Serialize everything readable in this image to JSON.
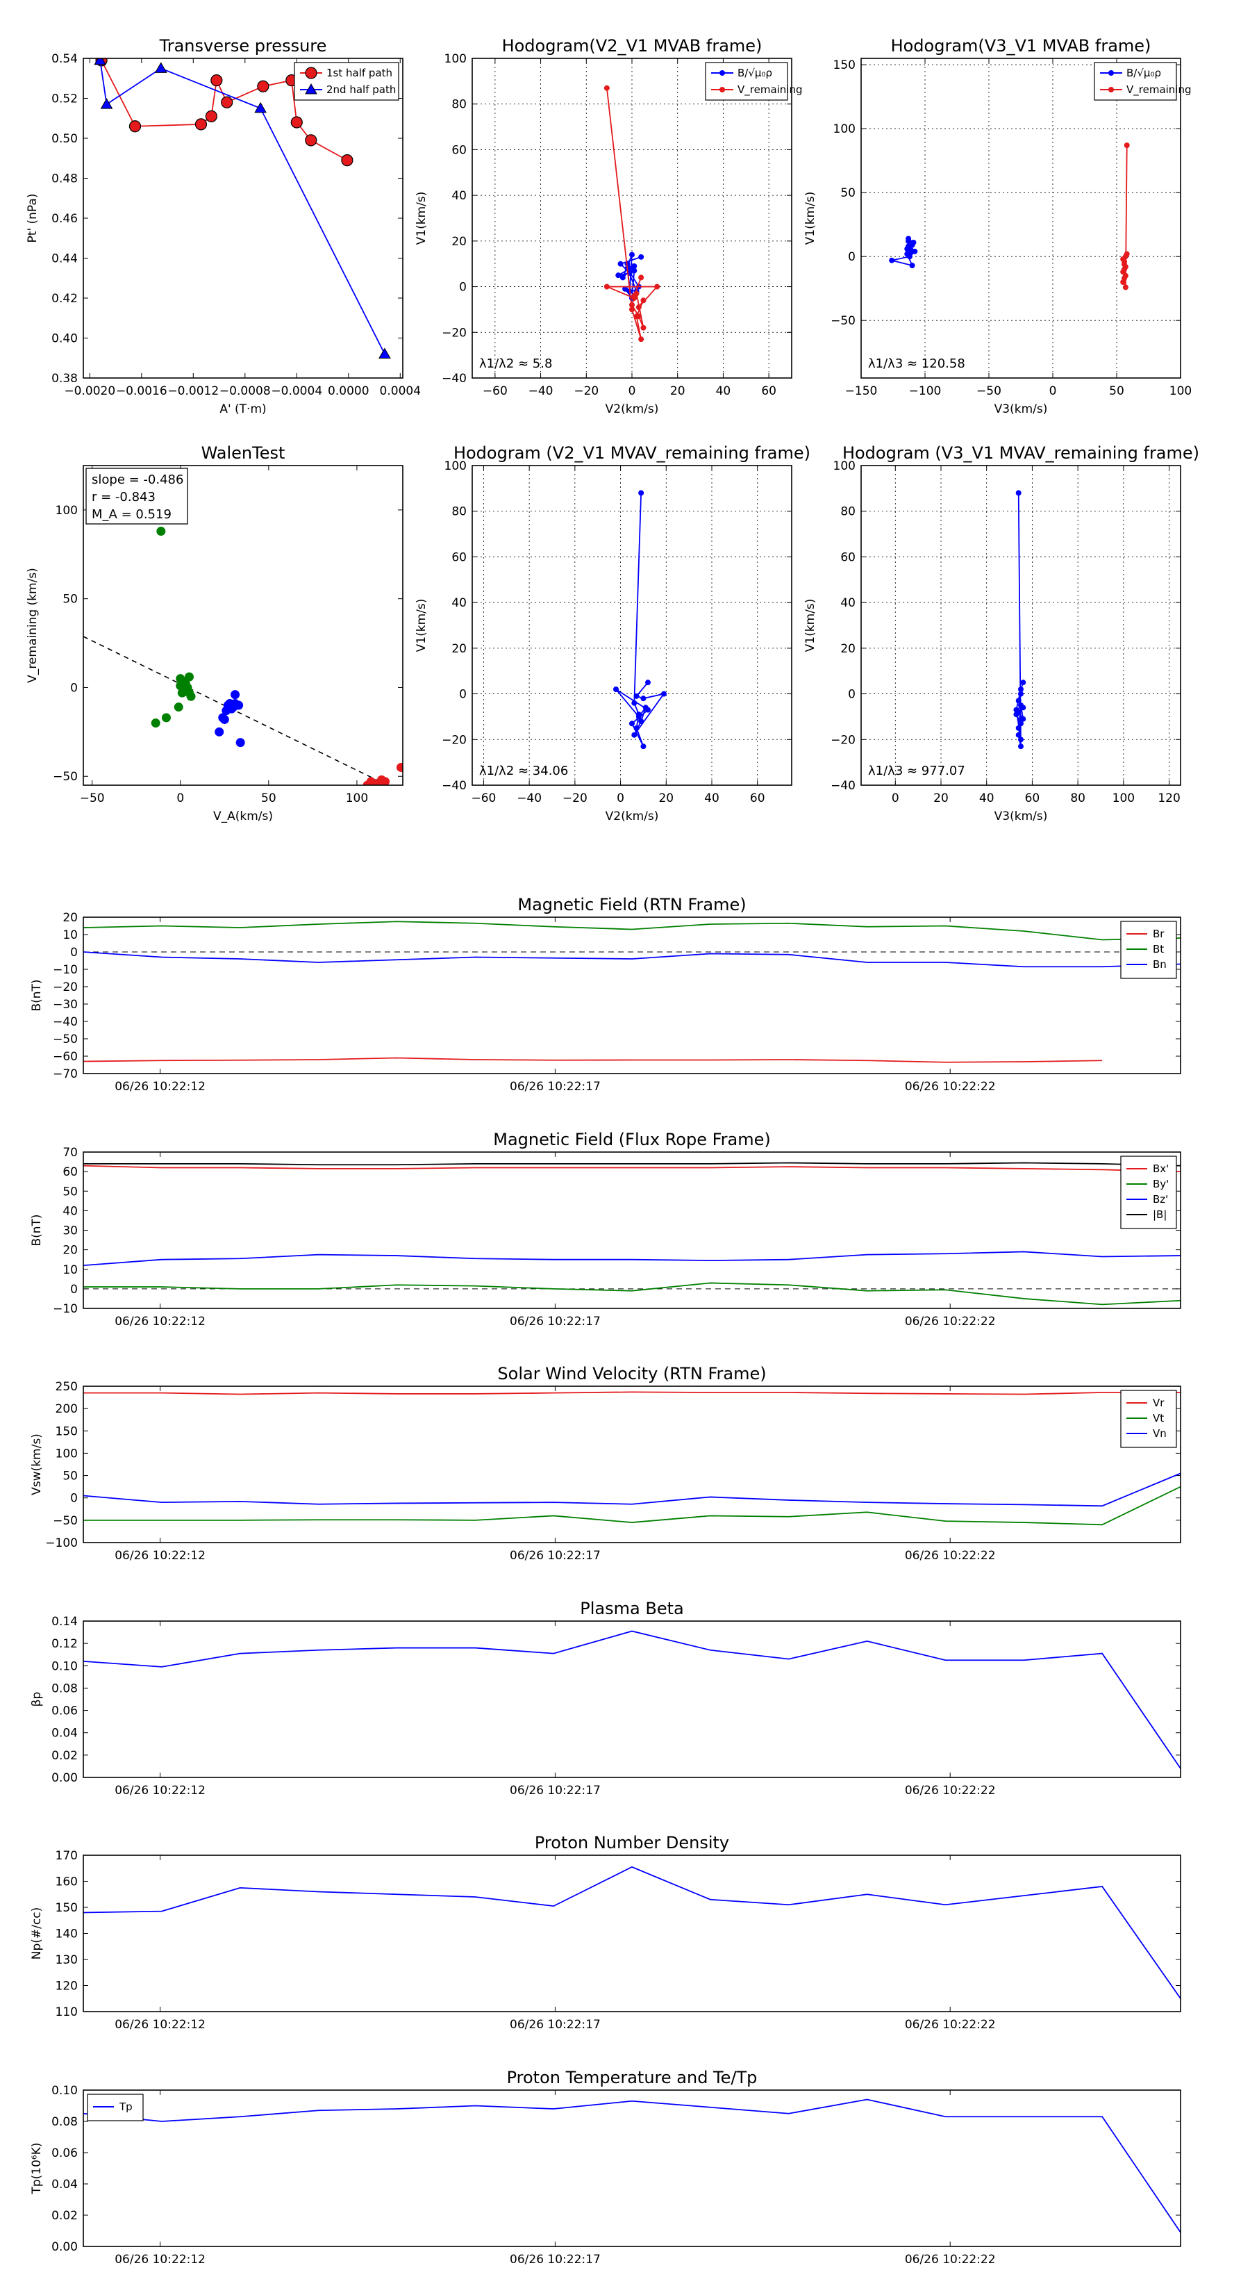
{
  "colors": {
    "red": "#e41a1c",
    "blue": "#0000ff",
    "green": "#008000",
    "black": "#000000"
  },
  "chart_data": [
    {
      "id": "tp",
      "type": "line",
      "title": "Transverse pressure",
      "xlabel": "A' (T·m)",
      "ylabel": "Pt' (nPa)",
      "xlim": [
        -0.00205,
        0.00042
      ],
      "ylim": [
        0.38,
        0.54
      ],
      "xticks": [
        -0.002,
        -0.0016,
        -0.0012,
        -0.0008,
        -0.0004,
        0.0,
        0.0004
      ],
      "xticklabels": [
        "−0.0020",
        "−0.0016",
        "−0.0012",
        "−0.0008",
        "−0.0004",
        "0.0000",
        "0.0004"
      ],
      "yticks": [
        0.38,
        0.4,
        0.42,
        0.44,
        0.46,
        0.48,
        0.5,
        0.52,
        0.54
      ],
      "yticklabels": [
        "0.38",
        "0.40",
        "0.42",
        "0.44",
        "0.46",
        "0.48",
        "0.50",
        "0.52",
        "0.54"
      ],
      "grid": false,
      "legend": "top-right",
      "series": [
        {
          "name": "1st half path",
          "color": "red",
          "marker": "circle",
          "x": [
            -0.00191,
            -0.00165,
            -0.00114,
            -0.00106,
            -0.00102,
            -0.00094,
            -0.00066,
            -0.00044,
            -0.0004,
            -0.00029,
            -1e-05
          ],
          "y": [
            0.539,
            0.506,
            0.507,
            0.511,
            0.529,
            0.518,
            0.526,
            0.529,
            0.508,
            0.499,
            0.489
          ]
        },
        {
          "name": "2nd half path",
          "color": "blue",
          "marker": "triangle",
          "x": [
            -0.00192,
            -0.00187,
            -0.00145,
            -0.00068,
            0.00028
          ],
          "y": [
            0.539,
            0.517,
            0.535,
            0.515,
            0.392
          ]
        }
      ]
    },
    {
      "id": "h1",
      "type": "line",
      "title": "Hodogram(V2_V1 MVAB frame)",
      "xlabel": "V2(km/s)",
      "ylabel": "V1(km/s)",
      "xlim": [
        -70,
        70
      ],
      "ylim": [
        -40,
        100
      ],
      "xticks": [
        -60,
        -40,
        -20,
        0,
        20,
        40,
        60
      ],
      "xticklabels": [
        "−60",
        "−40",
        "−20",
        "0",
        "20",
        "40",
        "60"
      ],
      "yticks": [
        -40,
        -20,
        0,
        20,
        40,
        60,
        80,
        100
      ],
      "yticklabels": [
        "−40",
        "−20",
        "0",
        "20",
        "40",
        "60",
        "80",
        "100"
      ],
      "grid": true,
      "legend": "top-right",
      "annotation": "λ1/λ2 ≈ 5.8",
      "series": [
        {
          "name": "B/√μ₀ρ",
          "color": "blue",
          "marker": "dot",
          "x": [
            4,
            -5,
            -1,
            -6,
            1,
            -4,
            0,
            -1,
            -2,
            1,
            0,
            -3,
            2,
            -2,
            3
          ],
          "y": [
            13,
            10,
            6,
            5,
            9,
            4,
            14,
            -2,
            10,
            7,
            -5,
            -1,
            -2,
            8,
            0
          ]
        },
        {
          "name": "V_remaining",
          "color": "red",
          "marker": "dot",
          "x": [
            -11,
            0,
            4,
            2,
            5,
            3,
            11,
            -11,
            1,
            0,
            3,
            5,
            2,
            1,
            4
          ],
          "y": [
            87,
            -10,
            -23,
            -13,
            -6,
            -9,
            0,
            0,
            -5,
            -8,
            -13,
            -18,
            -3,
            -4,
            4
          ]
        }
      ]
    },
    {
      "id": "h2",
      "type": "line",
      "title": "Hodogram(V3_V1 MVAB frame)",
      "xlabel": "V3(km/s)",
      "ylabel": "V1(km/s)",
      "xlim": [
        -150,
        100
      ],
      "ylim": [
        -95,
        155
      ],
      "xticks": [
        -150,
        -100,
        -50,
        0,
        50,
        100
      ],
      "xticklabels": [
        "−150",
        "−100",
        "−50",
        "0",
        "50",
        "100"
      ],
      "yticks": [
        -50,
        0,
        50,
        100,
        150
      ],
      "yticklabels": [
        "−50",
        "0",
        "50",
        "100",
        "150"
      ],
      "grid": true,
      "legend": "top-right",
      "annotation": "λ1/λ3 ≈ 120.58",
      "series": [
        {
          "name": "B/√μ₀ρ",
          "color": "blue",
          "marker": "dot",
          "x": [
            -113,
            -110,
            -114,
            -111,
            -109,
            -113,
            -112,
            -126,
            -110,
            -114,
            -111,
            -113,
            -108
          ],
          "y": [
            12,
            9,
            6,
            3,
            11,
            14,
            0,
            -3,
            -7,
            2,
            5,
            8,
            4
          ]
        },
        {
          "name": "V_remaining",
          "color": "red",
          "marker": "dot",
          "x": [
            58,
            57,
            56,
            55,
            57,
            56,
            58,
            55,
            56,
            57,
            56,
            55,
            57
          ],
          "y": [
            87,
            -24,
            -17,
            -12,
            -8,
            -4,
            2,
            -2,
            -10,
            -15,
            -6,
            -20,
            0
          ]
        }
      ]
    },
    {
      "id": "walen",
      "type": "scatter",
      "title": "WalenTest",
      "xlabel": "V_A(km/s)",
      "ylabel": "V_remaining (km/s)",
      "xlim": [
        -55,
        126
      ],
      "ylim": [
        -55,
        125
      ],
      "xticks": [
        -50,
        0,
        50,
        100
      ],
      "xticklabels": [
        "−50",
        "0",
        "50",
        "100"
      ],
      "yticks": [
        -50,
        0,
        50,
        100
      ],
      "yticklabels": [
        "−50",
        "0",
        "50",
        "100"
      ],
      "grid": false,
      "stats": [
        "slope = -0.486",
        "r = -0.843",
        "M_A = 0.519"
      ],
      "fit_line": {
        "slope": -0.486,
        "intercept": 2
      },
      "series": [
        {
          "name": "green",
          "color": "green",
          "x": [
            -11,
            -14,
            -8,
            0,
            5,
            2,
            4,
            6,
            1,
            3,
            -1,
            0,
            2,
            5
          ],
          "y": [
            88,
            -20,
            -17,
            5,
            6,
            3,
            0,
            -5,
            -3,
            2,
            -11,
            1,
            -1,
            -3
          ]
        },
        {
          "name": "blue",
          "color": "blue",
          "x": [
            31,
            28,
            26,
            33,
            25,
            27,
            30,
            22,
            34,
            29,
            24,
            31
          ],
          "y": [
            -4,
            -9,
            -13,
            -10,
            -18,
            -10,
            -11,
            -25,
            -31,
            -12,
            -17,
            -9
          ]
        },
        {
          "name": "red",
          "color": "red",
          "x": [
            108,
            112,
            114,
            110,
            116,
            106,
            125
          ],
          "y": [
            -53,
            -54,
            -52,
            -55,
            -53,
            -55,
            -45
          ]
        }
      ]
    },
    {
      "id": "h3",
      "type": "line",
      "title": "Hodogram (V2_V1 MVAV_remaining frame)",
      "xlabel": "V2(km/s)",
      "ylabel": "V1(km/s)",
      "xlim": [
        -65,
        75
      ],
      "ylim": [
        -40,
        100
      ],
      "xticks": [
        -60,
        -40,
        -20,
        0,
        20,
        40,
        60
      ],
      "xticklabels": [
        "−60",
        "−40",
        "−20",
        "0",
        "20",
        "40",
        "60"
      ],
      "yticks": [
        -40,
        -20,
        0,
        20,
        40,
        60,
        80,
        100
      ],
      "yticklabels": [
        "−40",
        "−20",
        "0",
        "20",
        "40",
        "60",
        "80",
        "100"
      ],
      "grid": true,
      "annotation": "λ1/λ2 ≈ 34.06",
      "series": [
        {
          "name": "V",
          "color": "blue",
          "marker": "dot",
          "x": [
            9,
            6,
            8,
            7,
            10,
            5,
            12,
            -2,
            8,
            11,
            9,
            6,
            19,
            10,
            7,
            12
          ],
          "y": [
            88,
            -4,
            -9,
            -15,
            -23,
            -13,
            -7,
            2,
            -10,
            -6,
            -12,
            -18,
            0,
            -2,
            -1,
            5
          ]
        }
      ]
    },
    {
      "id": "h4",
      "type": "line",
      "title": "Hodogram (V3_V1 MVAV_remaining frame)",
      "xlabel": "V3(km/s)",
      "ylabel": "V1(km/s)",
      "xlim": [
        -15,
        125
      ],
      "ylim": [
        -40,
        100
      ],
      "xticks": [
        0,
        20,
        40,
        60,
        80,
        100,
        120
      ],
      "xticklabels": [
        "0",
        "20",
        "40",
        "60",
        "80",
        "100",
        "120"
      ],
      "yticks": [
        -40,
        -20,
        0,
        20,
        40,
        60,
        80,
        100
      ],
      "yticklabels": [
        "−40",
        "−20",
        "0",
        "20",
        "40",
        "60",
        "80",
        "100"
      ],
      "grid": true,
      "annotation": "λ1/λ3 ≈ 977.07",
      "series": [
        {
          "name": "V",
          "color": "blue",
          "marker": "dot",
          "x": [
            54,
            55,
            54,
            55,
            53,
            56,
            54,
            55,
            54,
            56,
            55,
            54,
            55,
            53,
            55,
            56
          ],
          "y": [
            88,
            -23,
            -18,
            -13,
            -9,
            -6,
            -3,
            0,
            -8,
            -11,
            -5,
            -15,
            -20,
            -7,
            2,
            5
          ]
        }
      ]
    },
    {
      "id": "ts1",
      "type": "line",
      "title": "Magnetic Field (RTN Frame)",
      "ylabel": "B(nT)",
      "ylim": [
        -70,
        20
      ],
      "yticks": [
        -70,
        -60,
        -50,
        -40,
        -30,
        -20,
        -10,
        0,
        10,
        20
      ],
      "yticklabels": [
        "−70",
        "−60",
        "−50",
        "−40",
        "−30",
        "−20",
        "−10",
        "0",
        "10",
        "20"
      ],
      "xticklabels": [
        "06/26 10:22:12",
        "06/26 10:22:17",
        "06/26 10:22:22"
      ],
      "zero_line": true,
      "legend": "top-right",
      "series": [
        {
          "name": "Br",
          "color": "red",
          "values": [
            -63,
            -62.5,
            -62.3,
            -62,
            -61,
            -62,
            -62.3,
            -62.2,
            -62.2,
            -62,
            -62.5,
            -63.5,
            -63.2,
            -62.5
          ]
        },
        {
          "name": "Bt",
          "color": "green",
          "values": [
            14,
            15,
            14,
            16,
            17.5,
            16.5,
            14.5,
            13,
            16,
            16.5,
            14.5,
            15,
            12,
            7,
            8
          ]
        },
        {
          "name": "Bn",
          "color": "blue",
          "values": [
            0,
            -3,
            -4,
            -6,
            -4.5,
            -3,
            -3.5,
            -4,
            -1,
            -1.5,
            -6,
            -6,
            -8.5,
            -8.5,
            -7
          ]
        }
      ]
    },
    {
      "id": "ts2",
      "type": "line",
      "title": "Magnetic Field (Flux Rope Frame)",
      "ylabel": "B(nT)",
      "ylim": [
        -10,
        70
      ],
      "yticks": [
        -10,
        0,
        10,
        20,
        30,
        40,
        50,
        60,
        70
      ],
      "yticklabels": [
        "−10",
        "0",
        "10",
        "20",
        "30",
        "40",
        "50",
        "60",
        "70"
      ],
      "xticklabels": [
        "06/26 10:22:12",
        "06/26 10:22:17",
        "06/26 10:22:22"
      ],
      "zero_line": true,
      "legend": "top-right",
      "series": [
        {
          "name": "Bx'",
          "color": "red",
          "values": [
            63,
            62,
            62,
            61.5,
            61.5,
            62,
            62,
            62,
            62,
            62.5,
            62,
            62,
            61.5,
            61,
            60
          ]
        },
        {
          "name": "By'",
          "color": "green",
          "values": [
            1,
            1,
            0,
            0,
            2,
            1.5,
            0,
            -1,
            3,
            2,
            -1,
            -0.5,
            -5,
            -8,
            -6
          ]
        },
        {
          "name": "Bz'",
          "color": "blue",
          "values": [
            12,
            15,
            15.5,
            17.5,
            17,
            15.5,
            15,
            15,
            14.5,
            15,
            17.5,
            18,
            19,
            16.5,
            17
          ]
        },
        {
          "name": "|B|",
          "color": "black",
          "values": [
            64,
            64,
            64,
            63.5,
            63.5,
            64,
            64,
            64,
            64,
            64.5,
            64,
            64,
            64.5,
            64,
            63
          ]
        }
      ]
    },
    {
      "id": "ts3",
      "type": "line",
      "title": "Solar Wind Velocity (RTN Frame)",
      "ylabel": "Vsw(km/s)",
      "ylim": [
        -100,
        250
      ],
      "yticks": [
        -100,
        -50,
        0,
        50,
        100,
        150,
        200,
        250
      ],
      "yticklabels": [
        "−100",
        "−50",
        "0",
        "50",
        "100",
        "150",
        "200",
        "250"
      ],
      "xticklabels": [
        "06/26 10:22:12",
        "06/26 10:22:17",
        "06/26 10:22:22"
      ],
      "zero_line": false,
      "legend": "top-right",
      "series": [
        {
          "name": "Vr",
          "color": "red",
          "values": [
            235,
            235,
            232,
            235,
            233,
            233,
            235,
            237,
            236,
            236,
            234,
            233,
            232,
            236,
            236
          ]
        },
        {
          "name": "Vt",
          "color": "green",
          "values": [
            -50,
            -50,
            -50,
            -49,
            -49,
            -50,
            -40,
            -55,
            -40,
            -42,
            -32,
            -52,
            -55,
            -60,
            25
          ]
        },
        {
          "name": "Vn",
          "color": "blue",
          "values": [
            5,
            -10,
            -8,
            -14,
            -12,
            -11,
            -10,
            -14,
            2,
            -5,
            -10,
            -13,
            -15,
            -18,
            55
          ]
        }
      ]
    },
    {
      "id": "ts4",
      "type": "line",
      "title": "Plasma Beta",
      "ylabel": "βp",
      "ylim": [
        0,
        0.14
      ],
      "yticks": [
        0,
        0.02,
        0.04,
        0.06,
        0.08,
        0.1,
        0.12,
        0.14
      ],
      "yticklabels": [
        "0.00",
        "0.02",
        "0.04",
        "0.06",
        "0.08",
        "0.10",
        "0.12",
        "0.14"
      ],
      "xticklabels": [
        "06/26 10:22:12",
        "06/26 10:22:17",
        "06/26 10:22:22"
      ],
      "zero_line": false,
      "series": [
        {
          "name": "βp",
          "color": "blue",
          "values": [
            0.104,
            0.099,
            0.111,
            0.114,
            0.116,
            0.116,
            0.111,
            0.131,
            0.114,
            0.106,
            0.122,
            0.105,
            0.105,
            0.111,
            0.008
          ]
        }
      ]
    },
    {
      "id": "ts5",
      "type": "line",
      "title": "Proton Number Density",
      "ylabel": "Np(#/cc)",
      "ylim": [
        110,
        170
      ],
      "yticks": [
        110,
        120,
        130,
        140,
        150,
        160,
        170
      ],
      "yticklabels": [
        "110",
        "120",
        "130",
        "140",
        "150",
        "160",
        "170"
      ],
      "xticklabels": [
        "06/26 10:22:12",
        "06/26 10:22:17",
        "06/26 10:22:22"
      ],
      "zero_line": false,
      "series": [
        {
          "name": "Np",
          "color": "blue",
          "values": [
            148,
            148.5,
            157.5,
            156,
            155,
            154,
            150.5,
            165.5,
            153,
            151,
            155,
            151,
            154.5,
            158,
            115
          ]
        }
      ]
    },
    {
      "id": "ts6",
      "type": "line",
      "title": "Proton Temperature and Te/Tp",
      "ylabel": "Tp(10⁶K)",
      "ylim": [
        0,
        0.1
      ],
      "yticks": [
        0,
        0.02,
        0.04,
        0.06,
        0.08,
        0.1
      ],
      "yticklabels": [
        "0.00",
        "0.02",
        "0.04",
        "0.06",
        "0.08",
        "0.10"
      ],
      "xticklabels": [
        "06/26 10:22:12",
        "06/26 10:22:17",
        "06/26 10:22:22"
      ],
      "zero_line": false,
      "legend": "top-left",
      "series": [
        {
          "name": "Tp",
          "color": "blue",
          "values": [
            0.085,
            0.08,
            0.083,
            0.087,
            0.088,
            0.09,
            0.088,
            0.093,
            0.089,
            0.085,
            0.094,
            0.083,
            0.083,
            0.083,
            0.009
          ]
        }
      ]
    }
  ]
}
